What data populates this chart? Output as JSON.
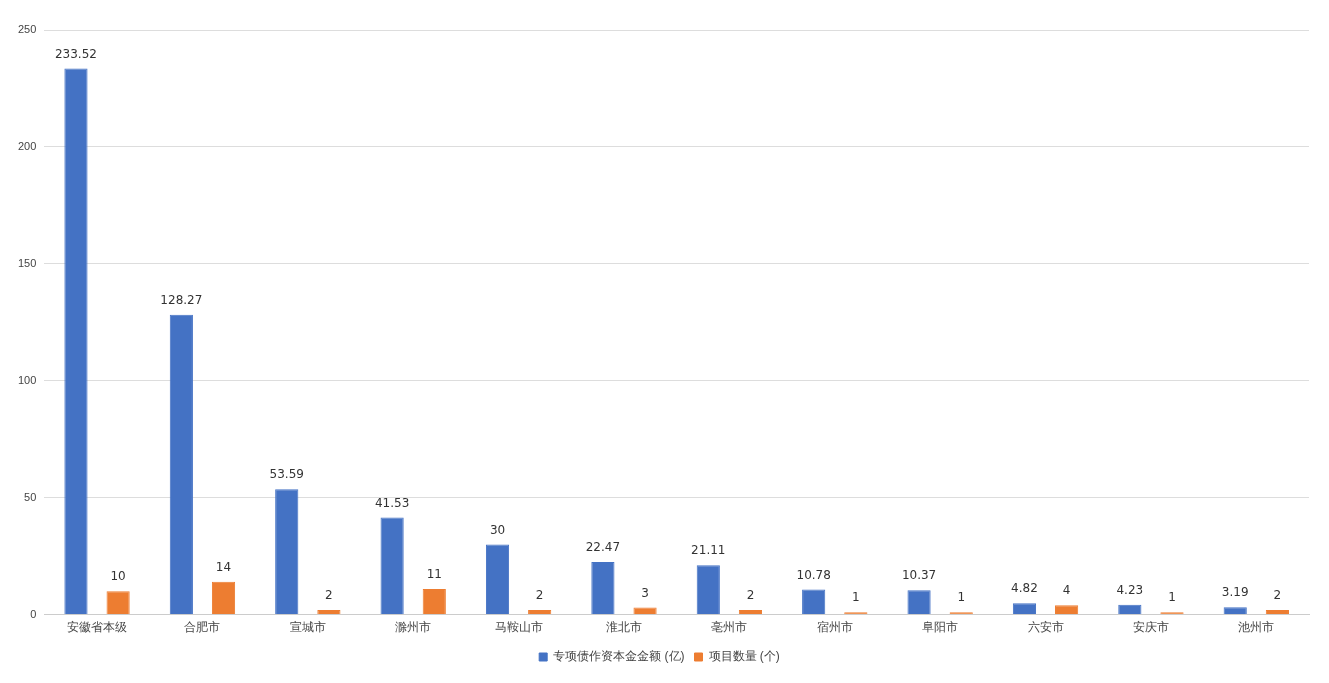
{
  "chart_data": {
    "type": "bar",
    "categories": [
      "安徽省本级",
      "合肥市",
      "宣城市",
      "滁州市",
      "马鞍山市",
      "淮北市",
      "亳州市",
      "宿州市",
      "阜阳市",
      "六安市",
      "安庆市",
      "池州市"
    ],
    "series": [
      {
        "name": "专项债作资本金金额 (亿)",
        "color": "#4472c4",
        "values": [
          233.52,
          128.27,
          53.59,
          41.53,
          30,
          22.47,
          21.11,
          10.78,
          10.37,
          4.82,
          4.23,
          3.19
        ]
      },
      {
        "name": "项目数量 (个)",
        "color": "#ed7d31",
        "values": [
          10,
          14,
          2,
          11,
          2,
          3,
          2,
          1,
          1,
          4,
          1,
          2
        ]
      }
    ],
    "ylim": [
      0,
      250
    ],
    "yticks": [
      0,
      50,
      100,
      150,
      200,
      250
    ],
    "grid": "y",
    "legend": "bottom",
    "data_labels": true
  }
}
